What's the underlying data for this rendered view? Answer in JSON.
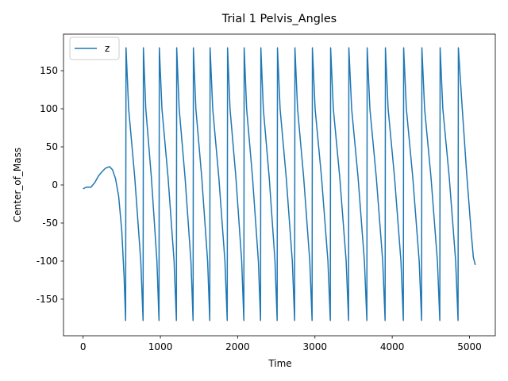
{
  "chart_data": {
    "type": "line",
    "title": "Trial 1 Pelvis_Angles",
    "xlabel": "Time",
    "ylabel": "Center_of_Mass",
    "x": [
      0,
      40,
      100,
      150,
      200,
      250,
      290,
      340,
      380,
      420,
      460,
      500,
      530,
      550,
      555,
      589,
      668,
      746,
      776,
      780,
      811,
      883,
      955,
      982,
      986,
      1020,
      1099,
      1177,
      1207,
      1211,
      1243,
      1319,
      1395,
      1423,
      1427,
      1459,
      1535,
      1611,
      1639,
      1643,
      1677,
      1756,
      1835,
      1865,
      1869,
      1901,
      1977,
      2052,
      2080,
      2084,
      2116,
      2192,
      2268,
      2296,
      2300,
      2332,
      2408,
      2483,
      2511,
      2515,
      2549,
      2628,
      2707,
      2737,
      2741,
      2775,
      2854,
      2933,
      2963,
      2967,
      3002,
      3085,
      3168,
      3199,
      3203,
      3238,
      3321,
      3404,
      3435,
      3439,
      3475,
      3558,
      3640,
      3672,
      3676,
      3711,
      3794,
      3877,
      3908,
      3912,
      3947,
      4030,
      4113,
      4144,
      4148,
      4183,
      4266,
      4349,
      4380,
      4384,
      4419,
      4502,
      4585,
      4616,
      4620,
      4655,
      4738,
      4821,
      4852,
      4856,
      4900,
      4960,
      5020,
      5050,
      5075
    ],
    "series": [
      {
        "name": "z",
        "color": "#1f77b4",
        "values": [
          -5,
          -3,
          -3,
          3,
          12,
          18,
          22,
          24,
          20,
          8,
          -15,
          -60,
          -120,
          -178,
          180,
          100,
          10,
          -100,
          -178,
          180,
          100,
          10,
          -100,
          -178,
          180,
          100,
          10,
          -100,
          -178,
          180,
          100,
          10,
          -100,
          -178,
          180,
          100,
          10,
          -100,
          -178,
          180,
          100,
          10,
          -100,
          -178,
          180,
          100,
          10,
          -100,
          -178,
          180,
          100,
          10,
          -100,
          -178,
          180,
          100,
          10,
          -100,
          -178,
          180,
          100,
          10,
          -100,
          -178,
          180,
          100,
          10,
          -100,
          -178,
          180,
          100,
          10,
          -100,
          -178,
          180,
          100,
          10,
          -100,
          -178,
          180,
          100,
          10,
          -100,
          -178,
          180,
          100,
          10,
          -100,
          -178,
          180,
          100,
          10,
          -100,
          -178,
          180,
          100,
          10,
          -100,
          -178,
          180,
          100,
          10,
          -100,
          -178,
          180,
          100,
          10,
          -100,
          -178,
          180,
          110,
          20,
          -60,
          -95,
          -105
        ]
      }
    ],
    "xlim": [
      -254,
      5334
    ],
    "ylim": [
      -198,
      198
    ],
    "xticks": [
      0,
      1000,
      2000,
      3000,
      4000,
      5000
    ],
    "yticks": [
      -150,
      -100,
      -50,
      0,
      50,
      100,
      150
    ],
    "legend": "upper left"
  }
}
